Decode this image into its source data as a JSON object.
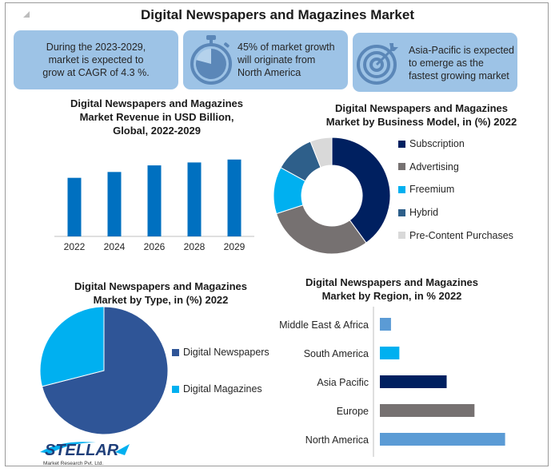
{
  "title": "Digital Newspapers and Magazines Market",
  "info_boxes": [
    {
      "text_lines": [
        "During the 2023-2029,",
        "market is expected to",
        "grow at CAGR of 4.3 %."
      ],
      "icon": "none"
    },
    {
      "text_lines": [
        "45% of market growth",
        "will originate from",
        "North America"
      ],
      "icon": "stopwatch-icon"
    },
    {
      "text_lines": [
        "Asia-Pacific is expected",
        "to emerge as the",
        "fastest growing market"
      ],
      "icon": "target-icon"
    }
  ],
  "logo": {
    "name": "STELLAR",
    "tagline": "Market Research Pvt. Ltd."
  },
  "colors": {
    "info_bg": "#9dc3e6",
    "bar_blue": "#0070c0",
    "navy": "#002060",
    "gray": "#767171",
    "cyan": "#00b0f0",
    "steel": "#2e5f8a",
    "light_gray": "#d9d9d9",
    "dark_blue": "#2f5597",
    "region_light": "#5b9bd5"
  },
  "chart_data": [
    {
      "type": "bar",
      "title_lines": [
        "Digital Newspapers and Magazines",
        "Market Revenue in USD Billion,",
        "Global, 2022-2029"
      ],
      "categories": [
        "2022",
        "2024",
        "2026",
        "2028",
        "2029"
      ],
      "values": [
        80,
        88,
        97,
        101,
        105
      ],
      "ylim": [
        0,
        120
      ],
      "grid": false,
      "color": "#0070c0"
    },
    {
      "type": "pie",
      "donut": true,
      "title_lines": [
        "Digital Newspapers and Magazines",
        "Market by Business Model, in (%) 2022"
      ],
      "categories": [
        "Subscription",
        "Advertising",
        "Freemium",
        "Hybrid",
        "Pre-Content Purchases"
      ],
      "values": [
        40,
        30,
        13,
        11,
        6
      ],
      "colors": [
        "#002060",
        "#767171",
        "#00b0f0",
        "#2e5f8a",
        "#d9d9d9"
      ],
      "legend": "right"
    },
    {
      "type": "pie",
      "title_lines": [
        "Digital Newspapers and Magazines",
        "Market by Type, in (%) 2022"
      ],
      "categories": [
        "Digital Newspapers",
        "Digital Magazines"
      ],
      "values": [
        71,
        29
      ],
      "colors": [
        "#2f5597",
        "#00b0f0"
      ],
      "legend": "right"
    },
    {
      "type": "bar",
      "orientation": "horizontal",
      "title_lines": [
        "Digital Newspapers and Magazines",
        "Market by Region, in % 2022"
      ],
      "categories": [
        "Middle East & Africa",
        "South America",
        "Asia Pacific",
        "Europe",
        "North America"
      ],
      "values": [
        4,
        7,
        24,
        34,
        45
      ],
      "colors": [
        "#5b9bd5",
        "#00b0f0",
        "#002060",
        "#767171",
        "#5b9bd5"
      ],
      "xlim": [
        0,
        50
      ]
    }
  ]
}
